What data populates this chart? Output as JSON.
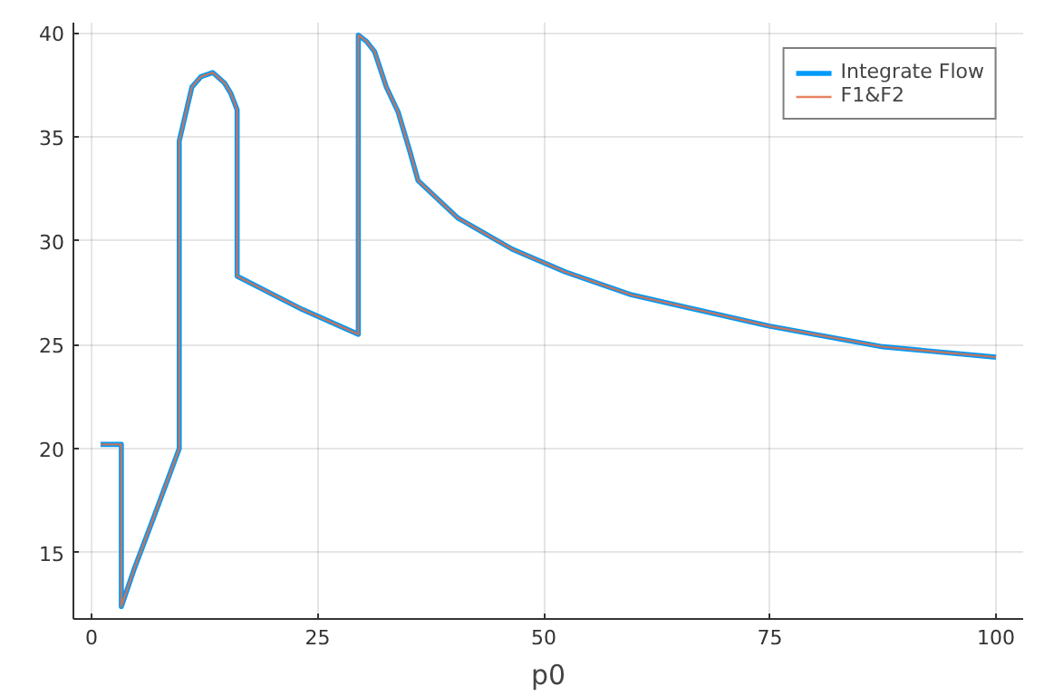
{
  "chart_data": {
    "type": "line",
    "xlabel": "p0",
    "xlim": [
      -2,
      103
    ],
    "ylim": [
      11.8,
      40.5
    ],
    "xticks": [
      0,
      25,
      50,
      75,
      100
    ],
    "yticks": [
      15,
      20,
      25,
      30,
      35,
      40
    ],
    "grid": true,
    "legend": "top right",
    "line_style": "solid",
    "marker": "none",
    "series": [
      {
        "name": "Integrate Flow",
        "color": "#009af9",
        "x": [
          1,
          3.3,
          3.3,
          4.8,
          6.8,
          9.7,
          9.7,
          11.1,
          12.1,
          13.4,
          14.7,
          15.4,
          16.1,
          16.1,
          23.3,
          29.5,
          29.5,
          30.4,
          31.3,
          32.6,
          33.9,
          35.2,
          36.1,
          40.5,
          46.5,
          52.4,
          59.7,
          74.9,
          87.5,
          100
        ],
        "values": [
          20.2,
          20.2,
          12.4,
          14.3,
          16.6,
          20.0,
          34.8,
          37.4,
          37.9,
          38.1,
          37.6,
          37.1,
          36.3,
          28.3,
          26.7,
          25.5,
          39.9,
          39.6,
          39.1,
          37.4,
          36.2,
          34.3,
          32.9,
          31.1,
          29.6,
          28.5,
          27.4,
          25.9,
          24.9,
          24.4
        ]
      },
      {
        "name": "F1&F2",
        "color": "#e26f46",
        "x": [
          1,
          3.3,
          3.3,
          4.8,
          6.8,
          9.7,
          9.7,
          11.1,
          12.1,
          13.4,
          14.7,
          15.4,
          16.1,
          16.1,
          23.3,
          29.5,
          29.5,
          30.4,
          31.3,
          32.6,
          33.9,
          35.2,
          36.1,
          40.5,
          46.5,
          52.4,
          59.7,
          74.9,
          87.5,
          100
        ],
        "values": [
          20.2,
          20.2,
          12.4,
          14.3,
          16.6,
          20.0,
          34.8,
          37.4,
          37.9,
          38.1,
          37.6,
          37.1,
          36.3,
          28.3,
          26.7,
          25.5,
          39.9,
          39.6,
          39.1,
          37.4,
          36.2,
          34.3,
          32.9,
          31.1,
          29.6,
          28.5,
          27.4,
          25.9,
          24.9,
          24.4
        ]
      }
    ]
  }
}
